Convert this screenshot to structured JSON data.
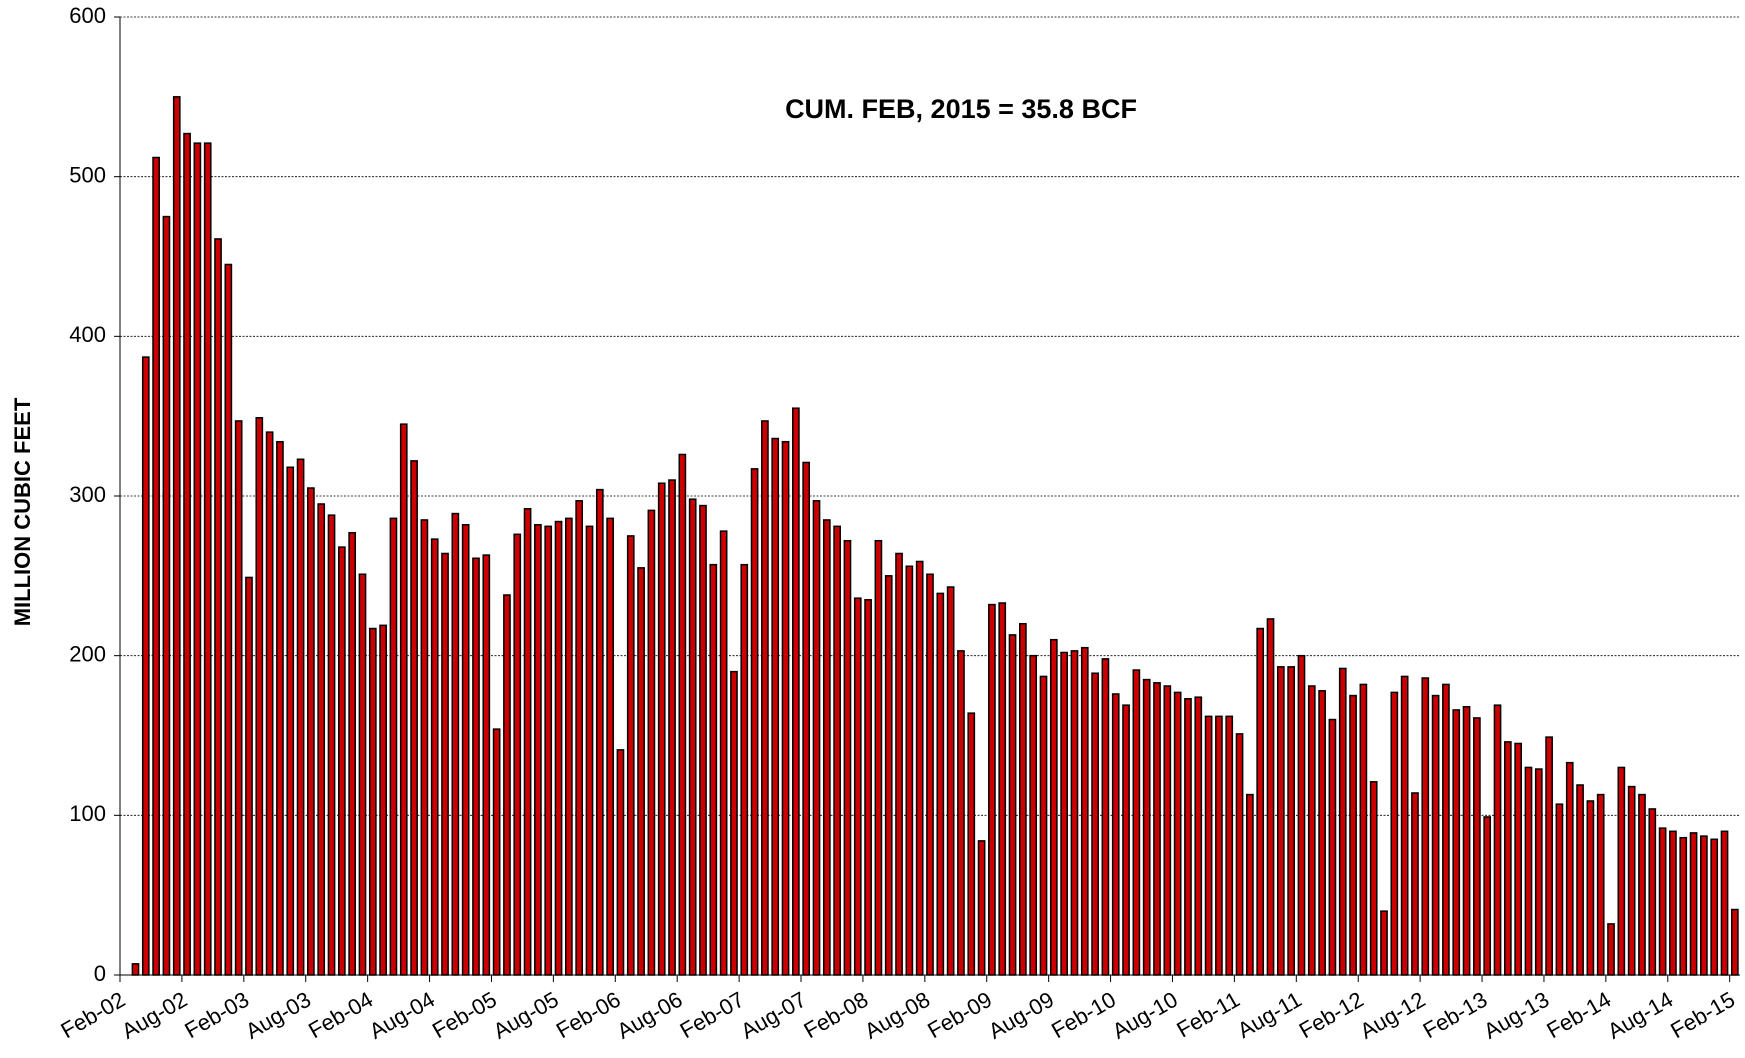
{
  "chart_data": {
    "type": "bar",
    "annotation": "CUM. FEB, 2015 = 35.8 BCF",
    "y_label": "MILLION CUBIC FEET",
    "color": "#cc0000",
    "ylim": [
      0,
      600
    ],
    "yticks": [
      0,
      100,
      200,
      300,
      400,
      500,
      600
    ],
    "grid": true,
    "categories": [
      "Feb-02",
      null,
      null,
      null,
      null,
      null,
      "Aug-02",
      null,
      null,
      null,
      null,
      null,
      "Feb-03",
      null,
      null,
      null,
      null,
      null,
      "Aug-03",
      null,
      null,
      null,
      null,
      null,
      "Feb-04",
      null,
      null,
      null,
      null,
      null,
      "Aug-04",
      null,
      null,
      null,
      null,
      null,
      "Feb-05",
      null,
      null,
      null,
      null,
      null,
      "Aug-05",
      null,
      null,
      null,
      null,
      null,
      "Feb-06",
      null,
      null,
      null,
      null,
      null,
      "Aug-06",
      null,
      null,
      null,
      null,
      null,
      "Feb-07",
      null,
      null,
      null,
      null,
      null,
      "Aug-07",
      null,
      null,
      null,
      null,
      null,
      "Feb-08",
      null,
      null,
      null,
      null,
      null,
      "Aug-08",
      null,
      null,
      null,
      null,
      null,
      "Feb-09",
      null,
      null,
      null,
      null,
      null,
      "Aug-09",
      null,
      null,
      null,
      null,
      null,
      "Feb-10",
      null,
      null,
      null,
      null,
      null,
      "Aug-10",
      null,
      null,
      null,
      null,
      null,
      "Feb-11",
      null,
      null,
      null,
      null,
      null,
      "Aug-11",
      null,
      null,
      null,
      null,
      null,
      "Feb-12",
      null,
      null,
      null,
      null,
      null,
      "Aug-12",
      null,
      null,
      null,
      null,
      null,
      "Feb-13",
      null,
      null,
      null,
      null,
      null,
      "Aug-13",
      null,
      null,
      null,
      null,
      null,
      "Feb-14",
      null,
      null,
      null,
      null,
      null,
      "Aug-14",
      null,
      null,
      null,
      null,
      null,
      "Feb-15"
    ],
    "values": [
      null,
      7,
      387,
      512,
      475,
      550,
      527,
      521,
      521,
      461,
      445,
      347,
      249,
      349,
      340,
      334,
      318,
      323,
      305,
      295,
      288,
      268,
      277,
      251,
      217,
      219,
      286,
      345,
      322,
      285,
      273,
      264,
      289,
      282,
      261,
      263,
      154,
      238,
      276,
      292,
      282,
      281,
      284,
      286,
      297,
      281,
      304,
      286,
      141,
      275,
      255,
      291,
      308,
      310,
      326,
      298,
      294,
      257,
      278,
      190,
      257,
      317,
      347,
      336,
      334,
      355,
      321,
      297,
      285,
      281,
      272,
      236,
      235,
      272,
      250,
      264,
      256,
      259,
      251,
      239,
      243,
      203,
      164,
      84,
      232,
      233,
      213,
      220,
      200,
      187,
      210,
      202,
      203,
      205,
      189,
      198,
      176,
      169,
      191,
      185,
      183,
      181,
      177,
      173,
      174,
      162,
      162,
      162,
      151,
      113,
      217,
      223,
      193,
      193,
      200,
      181,
      178,
      160,
      192,
      175,
      182,
      121,
      40,
      177,
      187,
      114,
      186,
      175,
      182,
      166,
      168,
      161,
      99,
      169,
      146,
      145,
      130,
      129,
      149,
      107,
      133,
      119,
      109,
      113,
      32,
      130,
      118,
      113,
      104,
      92,
      90,
      86,
      89,
      87,
      85,
      90,
      41
    ]
  }
}
